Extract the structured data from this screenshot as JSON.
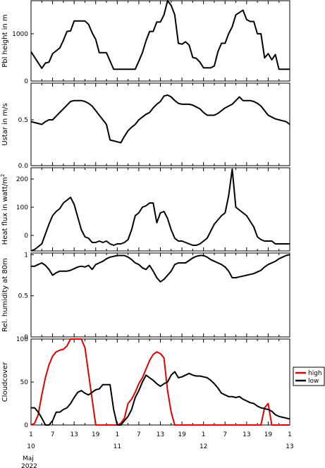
{
  "chart_data": [
    {
      "type": "line",
      "ylabel": "Pbl height in m",
      "ylim": [
        0,
        1700
      ],
      "yticks": [
        0,
        1000
      ],
      "yticklabels": [
        "0",
        "1000"
      ],
      "x_unit": "hours since 10 Maj 2022 00:00 UTC",
      "series": [
        {
          "color": "#000000",
          "x": [
            0,
            3,
            4,
            5,
            6,
            8,
            9,
            10,
            11,
            12,
            13,
            14,
            15,
            16,
            17,
            18,
            19,
            20,
            21,
            23,
            24,
            25,
            26,
            27,
            28,
            29,
            30,
            31,
            32,
            33,
            34,
            35,
            36,
            37,
            38,
            39,
            40,
            41,
            42,
            43,
            44,
            45,
            46,
            47,
            48,
            49,
            50,
            51,
            52,
            53,
            54,
            55,
            56,
            57,
            58,
            59,
            60,
            61,
            62,
            63,
            64,
            65,
            66,
            67,
            68,
            69,
            70,
            71,
            72
          ],
          "y": [
            620,
            270,
            380,
            400,
            580,
            700,
            860,
            1050,
            1060,
            1270,
            1270,
            1270,
            1270,
            1200,
            1020,
            880,
            600,
            600,
            600,
            250,
            250,
            250,
            250,
            250,
            250,
            250,
            420,
            600,
            850,
            1050,
            1050,
            1250,
            1250,
            1400,
            1700,
            1600,
            1400,
            800,
            780,
            830,
            760,
            500,
            480,
            400,
            280,
            280,
            280,
            320,
            620,
            800,
            800,
            1000,
            1150,
            1400,
            1450,
            1500,
            1300,
            1260,
            1260,
            1000,
            1000,
            490,
            580,
            450,
            560,
            250,
            250,
            250,
            250
          ]
        }
      ]
    },
    {
      "type": "line",
      "ylabel": "Ustar in m/s",
      "ylim": [
        0,
        0.9
      ],
      "yticks": [
        0,
        0.5
      ],
      "yticklabels": [
        "0.0",
        "0.5"
      ],
      "series": [
        {
          "color": "#000000",
          "x": [
            0,
            1,
            3,
            4,
            5,
            6,
            7,
            8,
            9,
            10,
            11,
            12,
            13,
            14,
            15,
            16,
            17,
            18,
            19,
            20,
            21,
            22,
            23,
            24,
            25,
            26,
            27,
            28,
            29,
            30,
            31,
            32,
            33,
            34,
            35,
            36,
            37,
            38,
            39,
            40,
            41,
            42,
            43,
            44,
            45,
            46,
            47,
            48,
            49,
            50,
            51,
            52,
            53,
            54,
            55,
            56,
            57,
            58,
            59,
            60,
            61,
            62,
            63,
            64,
            65,
            66,
            67,
            68,
            69,
            70,
            71,
            72
          ],
          "y": [
            0.48,
            0.47,
            0.45,
            0.48,
            0.5,
            0.5,
            0.54,
            0.58,
            0.62,
            0.66,
            0.7,
            0.71,
            0.71,
            0.71,
            0.7,
            0.68,
            0.65,
            0.6,
            0.55,
            0.5,
            0.45,
            0.28,
            0.27,
            0.26,
            0.25,
            0.32,
            0.38,
            0.42,
            0.45,
            0.5,
            0.53,
            0.56,
            0.58,
            0.63,
            0.67,
            0.7,
            0.76,
            0.77,
            0.75,
            0.71,
            0.68,
            0.67,
            0.67,
            0.67,
            0.66,
            0.64,
            0.62,
            0.58,
            0.55,
            0.55,
            0.55,
            0.57,
            0.6,
            0.63,
            0.65,
            0.67,
            0.71,
            0.75,
            0.71,
            0.71,
            0.71,
            0.7,
            0.68,
            0.65,
            0.6,
            0.55,
            0.53,
            0.51,
            0.5,
            0.49,
            0.48,
            0.45
          ]
        }
      ]
    },
    {
      "type": "line",
      "ylabel": "Heat flux in watt/m²",
      "ylabel_text": "Heat flux in watt/m",
      "ylabel_sup": "2",
      "ylim": [
        -55,
        240
      ],
      "yticks": [
        0,
        100,
        200
      ],
      "yticklabels": [
        "0",
        "100",
        "200"
      ],
      "series": [
        {
          "color": "#000000",
          "x": [
            0,
            1,
            2,
            3,
            4,
            5,
            6,
            7,
            8,
            9,
            10,
            11,
            12,
            13,
            14,
            15,
            16,
            17,
            18,
            19,
            20,
            21,
            22,
            23,
            24,
            25,
            26,
            27,
            28,
            29,
            30,
            31,
            32,
            33,
            34,
            35,
            36,
            37,
            38,
            39,
            40,
            41,
            42,
            43,
            44,
            45,
            46,
            47,
            48,
            49,
            50,
            51,
            52,
            53,
            54,
            55,
            56,
            57,
            58,
            59,
            60,
            61,
            62,
            63,
            64,
            65,
            66,
            67,
            68,
            69,
            70,
            71,
            72
          ],
          "y": [
            -55,
            -50,
            -40,
            -30,
            5,
            40,
            70,
            85,
            95,
            115,
            125,
            135,
            110,
            65,
            20,
            -5,
            -10,
            -25,
            -25,
            -20,
            -25,
            -20,
            -30,
            -35,
            -30,
            -30,
            -25,
            -15,
            20,
            70,
            80,
            100,
            105,
            115,
            115,
            45,
            80,
            85,
            60,
            20,
            -10,
            -20,
            -20,
            -25,
            -30,
            -35,
            -35,
            -30,
            -20,
            -10,
            15,
            40,
            55,
            70,
            80,
            140,
            235,
            100,
            90,
            80,
            70,
            50,
            30,
            -5,
            -15,
            -20,
            -20,
            -20,
            -30,
            -30,
            -30,
            -30,
            -30
          ]
        }
      ]
    },
    {
      "type": "line",
      "ylabel": "Rel. humidity at 80m",
      "ylim": [
        0,
        1.02
      ],
      "yticks": [
        0,
        0.5,
        1
      ],
      "yticklabels": [
        "0",
        "0.5",
        "1"
      ],
      "series": [
        {
          "color": "#000000",
          "x": [
            0,
            1,
            2,
            3,
            4,
            5,
            6,
            7,
            8,
            9,
            10,
            11,
            12,
            13,
            14,
            15,
            16,
            17,
            18,
            19,
            20,
            21,
            22,
            23,
            24,
            25,
            26,
            27,
            28,
            29,
            30,
            31,
            32,
            33,
            34,
            35,
            36,
            37,
            38,
            39,
            40,
            41,
            42,
            43,
            44,
            45,
            46,
            47,
            48,
            49,
            50,
            51,
            52,
            53,
            54,
            55,
            56,
            57,
            58,
            59,
            60,
            61,
            62,
            63,
            64,
            65,
            66,
            67,
            68,
            69,
            70,
            71,
            72
          ],
          "y": [
            0.86,
            0.86,
            0.88,
            0.9,
            0.87,
            0.82,
            0.75,
            0.78,
            0.8,
            0.8,
            0.8,
            0.81,
            0.83,
            0.85,
            0.86,
            0.85,
            0.87,
            0.82,
            0.88,
            0.9,
            0.92,
            0.95,
            0.97,
            0.98,
            0.99,
            0.99,
            0.99,
            0.97,
            0.94,
            0.9,
            0.88,
            0.84,
            0.82,
            0.87,
            0.8,
            0.72,
            0.67,
            0.7,
            0.75,
            0.8,
            0.88,
            0.9,
            0.9,
            0.9,
            0.93,
            0.96,
            0.98,
            0.99,
            0.99,
            0.97,
            0.94,
            0.92,
            0.9,
            0.88,
            0.85,
            0.8,
            0.72,
            0.72,
            0.73,
            0.74,
            0.75,
            0.76,
            0.77,
            0.79,
            0.81,
            0.85,
            0.88,
            0.9,
            0.92,
            0.95,
            0.97,
            0.99,
            1.0
          ]
        }
      ]
    },
    {
      "type": "line",
      "ylabel": "Cloudcover",
      "ylim": [
        0,
        100
      ],
      "yticks": [
        0,
        50,
        100
      ],
      "yticklabels": [
        "0",
        "50",
        "100"
      ],
      "xticks": [
        0,
        3,
        6,
        9,
        12,
        15,
        18,
        21,
        24,
        27,
        30,
        33,
        36,
        39,
        42,
        45,
        48,
        51,
        54,
        57,
        60,
        63,
        66,
        69,
        72
      ],
      "xticklabels": [
        "1",
        "4",
        "7",
        "10",
        "13",
        "16",
        "19",
        "22",
        "1",
        "4",
        "7",
        "10",
        "13",
        "16",
        "19",
        "22",
        "1",
        "4",
        "7",
        "10",
        "13",
        "16",
        "19",
        "22",
        "1"
      ],
      "xticklabels_visible": [
        "1",
        "7",
        "13",
        "19",
        "1",
        "7",
        "13",
        "19",
        "1",
        "7",
        "13",
        "19",
        "1"
      ],
      "xticklabels_visible_at": [
        0,
        6,
        12,
        18,
        24,
        30,
        36,
        42,
        48,
        54,
        60,
        66,
        72
      ],
      "date_labels": [
        {
          "x": 0,
          "label": "10"
        },
        {
          "x": 24,
          "label": "11"
        },
        {
          "x": 48,
          "label": "12"
        },
        {
          "x": 72,
          "label": "13"
        }
      ],
      "month_label": "Maj",
      "year_label": "2022",
      "legend": "right",
      "series": [
        {
          "name": "high",
          "color": "#e00000",
          "x": [
            0,
            1,
            2,
            3,
            4,
            5,
            6,
            7,
            8,
            9,
            10,
            11,
            12,
            13,
            14,
            15,
            16,
            17,
            18,
            19,
            20,
            21,
            22,
            23,
            24,
            25,
            26,
            27,
            28,
            29,
            30,
            31,
            32,
            33,
            34,
            35,
            36,
            37,
            38,
            39,
            40,
            41,
            42,
            43,
            44,
            45,
            46,
            47,
            48,
            49,
            50,
            51,
            52,
            53,
            54,
            55,
            56,
            57,
            58,
            59,
            60,
            61,
            62,
            63,
            64,
            65,
            66,
            67,
            68,
            69,
            70,
            71,
            72
          ],
          "y": [
            0,
            2,
            12,
            35,
            55,
            70,
            80,
            85,
            87,
            88,
            92,
            100,
            100,
            100,
            100,
            90,
            60,
            30,
            0,
            0,
            0,
            0,
            0,
            0,
            0,
            2,
            8,
            25,
            30,
            38,
            48,
            55,
            65,
            75,
            82,
            85,
            83,
            78,
            40,
            15,
            0,
            0,
            0,
            0,
            0,
            0,
            0,
            0,
            0,
            0,
            0,
            0,
            0,
            0,
            0,
            0,
            0,
            0,
            0,
            0,
            0,
            0,
            0,
            0,
            0,
            20,
            25,
            0,
            0,
            0,
            0,
            0,
            0
          ]
        },
        {
          "name": "low",
          "color": "#000000",
          "x": [
            0,
            1,
            2,
            3,
            4,
            5,
            6,
            7,
            8,
            9,
            10,
            11,
            12,
            13,
            14,
            15,
            16,
            17,
            18,
            19,
            20,
            21,
            22,
            23,
            24,
            25,
            26,
            27,
            28,
            29,
            30,
            31,
            32,
            33,
            34,
            35,
            36,
            37,
            38,
            39,
            40,
            41,
            42,
            43,
            44,
            45,
            46,
            47,
            48,
            49,
            50,
            51,
            52,
            53,
            54,
            55,
            56,
            57,
            58,
            59,
            60,
            61,
            62,
            63,
            64,
            65,
            66,
            67,
            68,
            69,
            70,
            71,
            72
          ],
          "y": [
            20,
            20,
            15,
            8,
            0,
            0,
            5,
            15,
            15,
            18,
            20,
            25,
            32,
            38,
            40,
            37,
            35,
            38,
            41,
            42,
            47,
            47,
            47,
            18,
            0,
            0,
            5,
            10,
            18,
            32,
            40,
            50,
            58,
            55,
            52,
            48,
            45,
            48,
            50,
            58,
            62,
            55,
            56,
            58,
            60,
            58,
            57,
            57,
            56,
            55,
            52,
            48,
            43,
            37,
            35,
            33,
            33,
            32,
            33,
            30,
            28,
            26,
            25,
            22,
            20,
            19,
            18,
            16,
            12,
            10,
            9,
            8,
            7
          ]
        }
      ]
    }
  ]
}
